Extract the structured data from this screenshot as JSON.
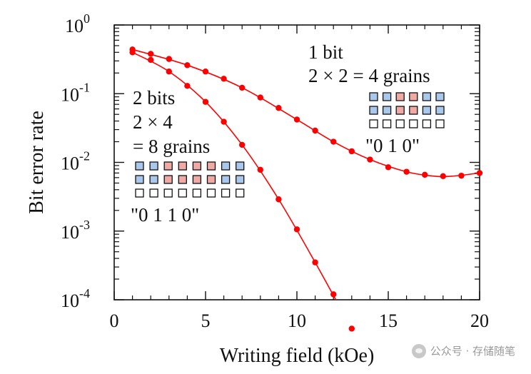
{
  "chart_data": {
    "type": "line",
    "xlabel": "Writing field (kOe)",
    "ylabel": "Bit error rate",
    "xlim": [
      0,
      20
    ],
    "ylim": [
      0.0001,
      1
    ],
    "yscale": "log",
    "x_ticks": [
      0,
      5,
      10,
      15,
      20
    ],
    "x_tick_labels": [
      "0",
      "5",
      "10",
      "15",
      "20"
    ],
    "y_ticks": [
      1,
      0.1,
      0.01,
      0.001,
      0.0001
    ],
    "y_tick_labels": [
      {
        "base": "10",
        "exp": "0"
      },
      {
        "base": "10",
        "exp": "-1"
      },
      {
        "base": "10",
        "exp": "-2"
      },
      {
        "base": "10",
        "exp": "-3"
      },
      {
        "base": "10",
        "exp": "-4"
      }
    ],
    "grid": false,
    "line_color": "#ff0000",
    "series": [
      {
        "x": [
          1,
          2,
          3,
          4,
          5,
          6,
          7,
          8,
          9,
          10,
          11,
          12,
          13,
          14,
          15,
          16,
          17,
          18,
          19,
          20
        ],
        "y": [
          0.44,
          0.38,
          0.32,
          0.26,
          0.21,
          0.165,
          0.122,
          0.088,
          0.062,
          0.042,
          0.029,
          0.02,
          0.0145,
          0.011,
          0.0085,
          0.0073,
          0.0066,
          0.0063,
          0.0064,
          0.007
        ]
      },
      {
        "x": [
          1,
          2,
          3,
          4,
          5,
          6,
          7,
          8,
          9,
          10,
          11,
          12,
          13
        ],
        "y": [
          0.4,
          0.31,
          0.21,
          0.13,
          0.076,
          0.039,
          0.018,
          0.0078,
          0.0029,
          0.00106,
          0.00035,
          0.00012,
          3.8e-05
        ]
      }
    ],
    "fit_lines": [
      {
        "x": [
          1,
          4,
          7,
          10,
          12,
          14,
          16,
          17.5,
          18.5,
          20
        ],
        "y": [
          0.44,
          0.26,
          0.122,
          0.042,
          0.02,
          0.011,
          0.0073,
          0.0063,
          0.0063,
          0.007
        ]
      },
      {
        "x": [
          1,
          3,
          5,
          7,
          9,
          11,
          13,
          13.4
        ],
        "y": [
          0.4,
          0.21,
          0.076,
          0.018,
          0.0029,
          0.00035,
          3.8e-05,
          2.65e-05
        ]
      }
    ],
    "annotations": [
      {
        "lines": [
          "1 bit",
          "2 × 2 = 4 grains"
        ],
        "pattern": [
          "0",
          "1",
          "0"
        ],
        "pattern_label": "\"0   1   0\""
      },
      {
        "lines": [
          "2 bits",
          "2 × 4",
          "= 8 grains"
        ],
        "pattern": [
          "0",
          "1",
          "1",
          "0"
        ],
        "pattern_label": "\"0   1   1   0\""
      }
    ],
    "grain_colors": {
      "zero": "#a9c8ec",
      "one": "#f0aaa6",
      "empty": "#ffffff",
      "edge": "#111111"
    }
  },
  "watermark": "公众号 · 存储随笔"
}
